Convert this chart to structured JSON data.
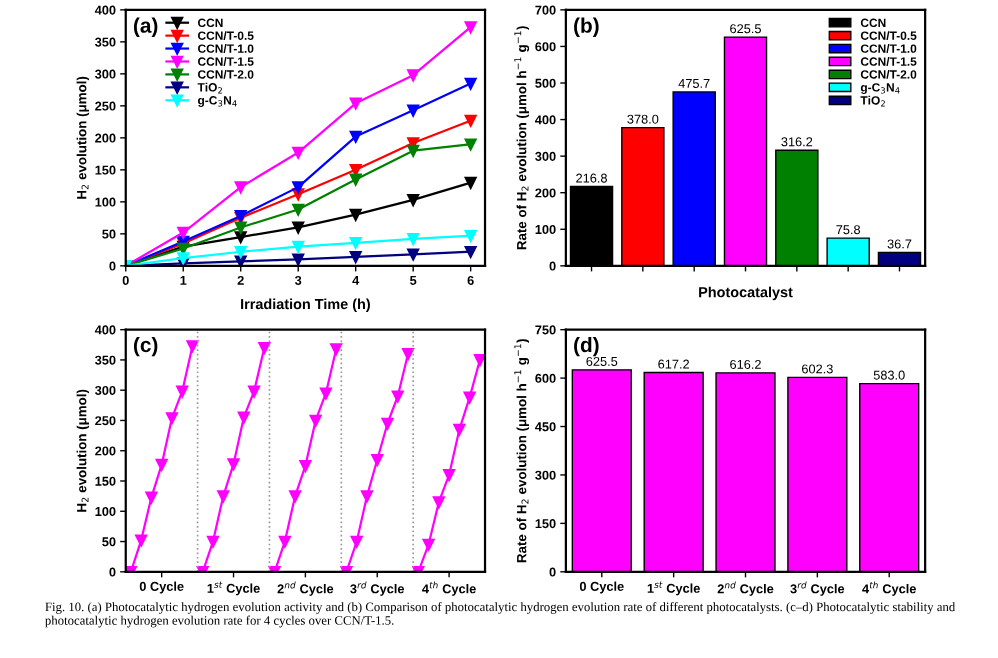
{
  "chart_data": [
    {
      "type": "line",
      "xlabel": "Irradiation Time (h)",
      "ylabel": "H$_{2}$ evolution (μmol)",
      "x": [
        0,
        1,
        2,
        3,
        4,
        5,
        6
      ],
      "xlim": [
        0,
        6.25
      ],
      "xticks": [
        0,
        1,
        2,
        3,
        4,
        5,
        6
      ],
      "ylim": [
        0,
        400
      ],
      "yticks": [
        0,
        50,
        100,
        150,
        200,
        250,
        300,
        350,
        400
      ],
      "marker": "triangle",
      "legend": "top left",
      "annotations": [
        "(a)",
        "Fig. 10. (a) Photocatalytic hydrogen evolution activity and (b) Comparison of photocatalytic hydrogen evolution rate of different photocatalysts. (c–d) Photocatalytic stability and photocatalytic hydrogen evolution rate for 4 cycles over CCN/T-1.5."
      ],
      "series": [
        {
          "name": "CCN",
          "color": "#000000",
          "values": [
            0,
            30,
            45,
            60,
            80,
            103,
            130
          ]
        },
        {
          "name": "CCN/T-0.5",
          "color": "#ff0000",
          "values": [
            0,
            35,
            75,
            112,
            150,
            192,
            227
          ]
        },
        {
          "name": "CCN/T-1.0",
          "color": "#0000ff",
          "values": [
            0,
            38,
            78,
            123,
            202,
            243,
            285
          ]
        },
        {
          "name": "CCN/T-1.5",
          "color": "#ff00ff",
          "values": [
            0,
            52,
            123,
            177,
            254,
            298,
            373
          ]
        },
        {
          "name": "CCN/T-2.0",
          "color": "#008000",
          "values": [
            0,
            27,
            60,
            88,
            135,
            180,
            190
          ]
        },
        {
          "name": "TiO$_{2}$",
          "color": "#000080",
          "values": [
            0,
            4,
            7,
            10,
            14,
            18,
            22
          ]
        },
        {
          "name": "g-C$_{3}$N$_{4}$",
          "color": "#00ffff",
          "values": [
            0,
            12,
            22,
            30,
            36,
            42,
            47
          ]
        }
      ]
    },
    {
      "type": "bar",
      "xlabel": "Photocatalyst",
      "ylabel": "Rate of H$_{2}$ evolution (μmol h$^{−1}$ g$^{−1}$)",
      "categories": [
        null,
        null,
        null,
        null,
        null,
        null,
        null
      ],
      "ylim": [
        0,
        700
      ],
      "yticks": [
        0,
        100,
        200,
        300,
        400,
        500,
        600,
        700
      ],
      "stacked": true,
      "legend": "top right",
      "annotations": [
        "(b)"
      ],
      "totals": [
        "216.8",
        "378.0",
        "475.7",
        "625.5",
        "316.2",
        "75.8",
        "36.7"
      ],
      "series": [
        {
          "name": "CCN",
          "color": "#000000",
          "values": [
            216.8,
            null,
            null,
            null,
            null,
            null,
            null
          ]
        },
        {
          "name": "CCN/T-0.5",
          "color": "#ff0000",
          "values": [
            null,
            378.0,
            null,
            null,
            null,
            null,
            null
          ]
        },
        {
          "name": "CCN/T-1.0",
          "color": "#0000ff",
          "values": [
            null,
            null,
            475.7,
            null,
            null,
            null,
            null
          ]
        },
        {
          "name": "CCN/T-1.5",
          "color": "#ff00ff",
          "values": [
            null,
            null,
            null,
            625.5,
            null,
            null,
            null
          ]
        },
        {
          "name": "CCN/T-2.0",
          "color": "#008000",
          "values": [
            null,
            null,
            null,
            null,
            316.2,
            null,
            null
          ]
        },
        {
          "name": "g-C$_{3}$N$_{4}$",
          "color": "#00ffff",
          "values": [
            null,
            null,
            null,
            null,
            null,
            75.8,
            null
          ]
        },
        {
          "name": "TiO$_{2}$",
          "color": "#000080",
          "values": [
            null,
            null,
            null,
            null,
            null,
            null,
            36.7
          ]
        }
      ]
    },
    {
      "type": "line",
      "ylabel": "H$_{2}$ evolution (μmol)",
      "categories": [
        null,
        null,
        null,
        "0 Cycle",
        null,
        null,
        null,
        null,
        null,
        null,
        "1$^{st}$ Cycle",
        null,
        null,
        null,
        null,
        null,
        null,
        "2$^{nd}$ Cycle",
        null,
        null,
        null,
        null,
        null,
        null,
        "3$^{rd}$ Cycle",
        null,
        null,
        null,
        null,
        null,
        null,
        "4$^{th}$ Cycle",
        null,
        null,
        null
      ],
      "ylim": [
        0,
        400
      ],
      "yticks": [
        0,
        50,
        100,
        150,
        200,
        250,
        300,
        350,
        400
      ],
      "marker": "triangle",
      "annotations": [
        "(c)"
      ],
      "series": [
        {
          "color": "#ff00ff",
          "values": [
            0,
            52,
            123,
            177,
            254,
            298,
            373,
            null,
            null,
            null,
            null,
            null,
            null,
            null,
            null,
            null,
            null,
            null,
            null,
            null,
            null,
            null,
            null,
            null,
            null,
            null,
            null,
            null,
            null,
            null,
            null,
            null,
            null,
            null,
            null
          ]
        },
        {
          "color": "#ff00ff",
          "values": [
            null,
            null,
            null,
            null,
            null,
            null,
            null,
            0,
            50,
            125,
            178,
            255,
            298,
            370,
            null,
            null,
            null,
            null,
            null,
            null,
            null,
            null,
            null,
            null,
            null,
            null,
            null,
            null,
            null,
            null,
            null,
            null,
            null,
            null,
            null
          ]
        },
        {
          "color": "#ff00ff",
          "values": [
            null,
            null,
            null,
            null,
            null,
            null,
            null,
            null,
            null,
            null,
            null,
            null,
            null,
            null,
            0,
            50,
            125,
            175,
            250,
            295,
            368,
            null,
            null,
            null,
            null,
            null,
            null,
            null,
            null,
            null,
            null,
            null,
            null,
            null,
            null
          ]
        },
        {
          "color": "#ff00ff",
          "values": [
            null,
            null,
            null,
            null,
            null,
            null,
            null,
            null,
            null,
            null,
            null,
            null,
            null,
            null,
            null,
            null,
            null,
            null,
            null,
            null,
            null,
            0,
            50,
            125,
            185,
            245,
            290,
            360,
            null,
            null,
            null,
            null,
            null,
            null,
            null
          ]
        },
        {
          "color": "#ff00ff",
          "values": [
            null,
            null,
            null,
            null,
            null,
            null,
            null,
            null,
            null,
            null,
            null,
            null,
            null,
            null,
            null,
            null,
            null,
            null,
            null,
            null,
            null,
            null,
            null,
            null,
            null,
            null,
            null,
            null,
            0,
            45,
            115,
            160,
            235,
            288,
            350
          ]
        }
      ]
    },
    {
      "type": "bar",
      "ylabel": "Rate of H$_{2}$ evolution (μmol h$^{−1}$ g$^{−1}$)",
      "categories": [
        "0 Cycle",
        "1$^{st}$ Cycle",
        "2$^{nd}$ Cycle",
        "3$^{rd}$ Cycle",
        "4$^{th}$ Cycle"
      ],
      "ylim": [
        0,
        750
      ],
      "yticks": [
        0,
        150,
        300,
        450,
        600,
        750
      ],
      "annotations": [
        "(d)"
      ],
      "color": "#ff00ff",
      "values": [
        625.5,
        617.2,
        616.2,
        602.3,
        583.0
      ],
      "value_labels": [
        "625.5",
        "617.2",
        "616.2",
        "602.3",
        "583.0"
      ]
    }
  ]
}
